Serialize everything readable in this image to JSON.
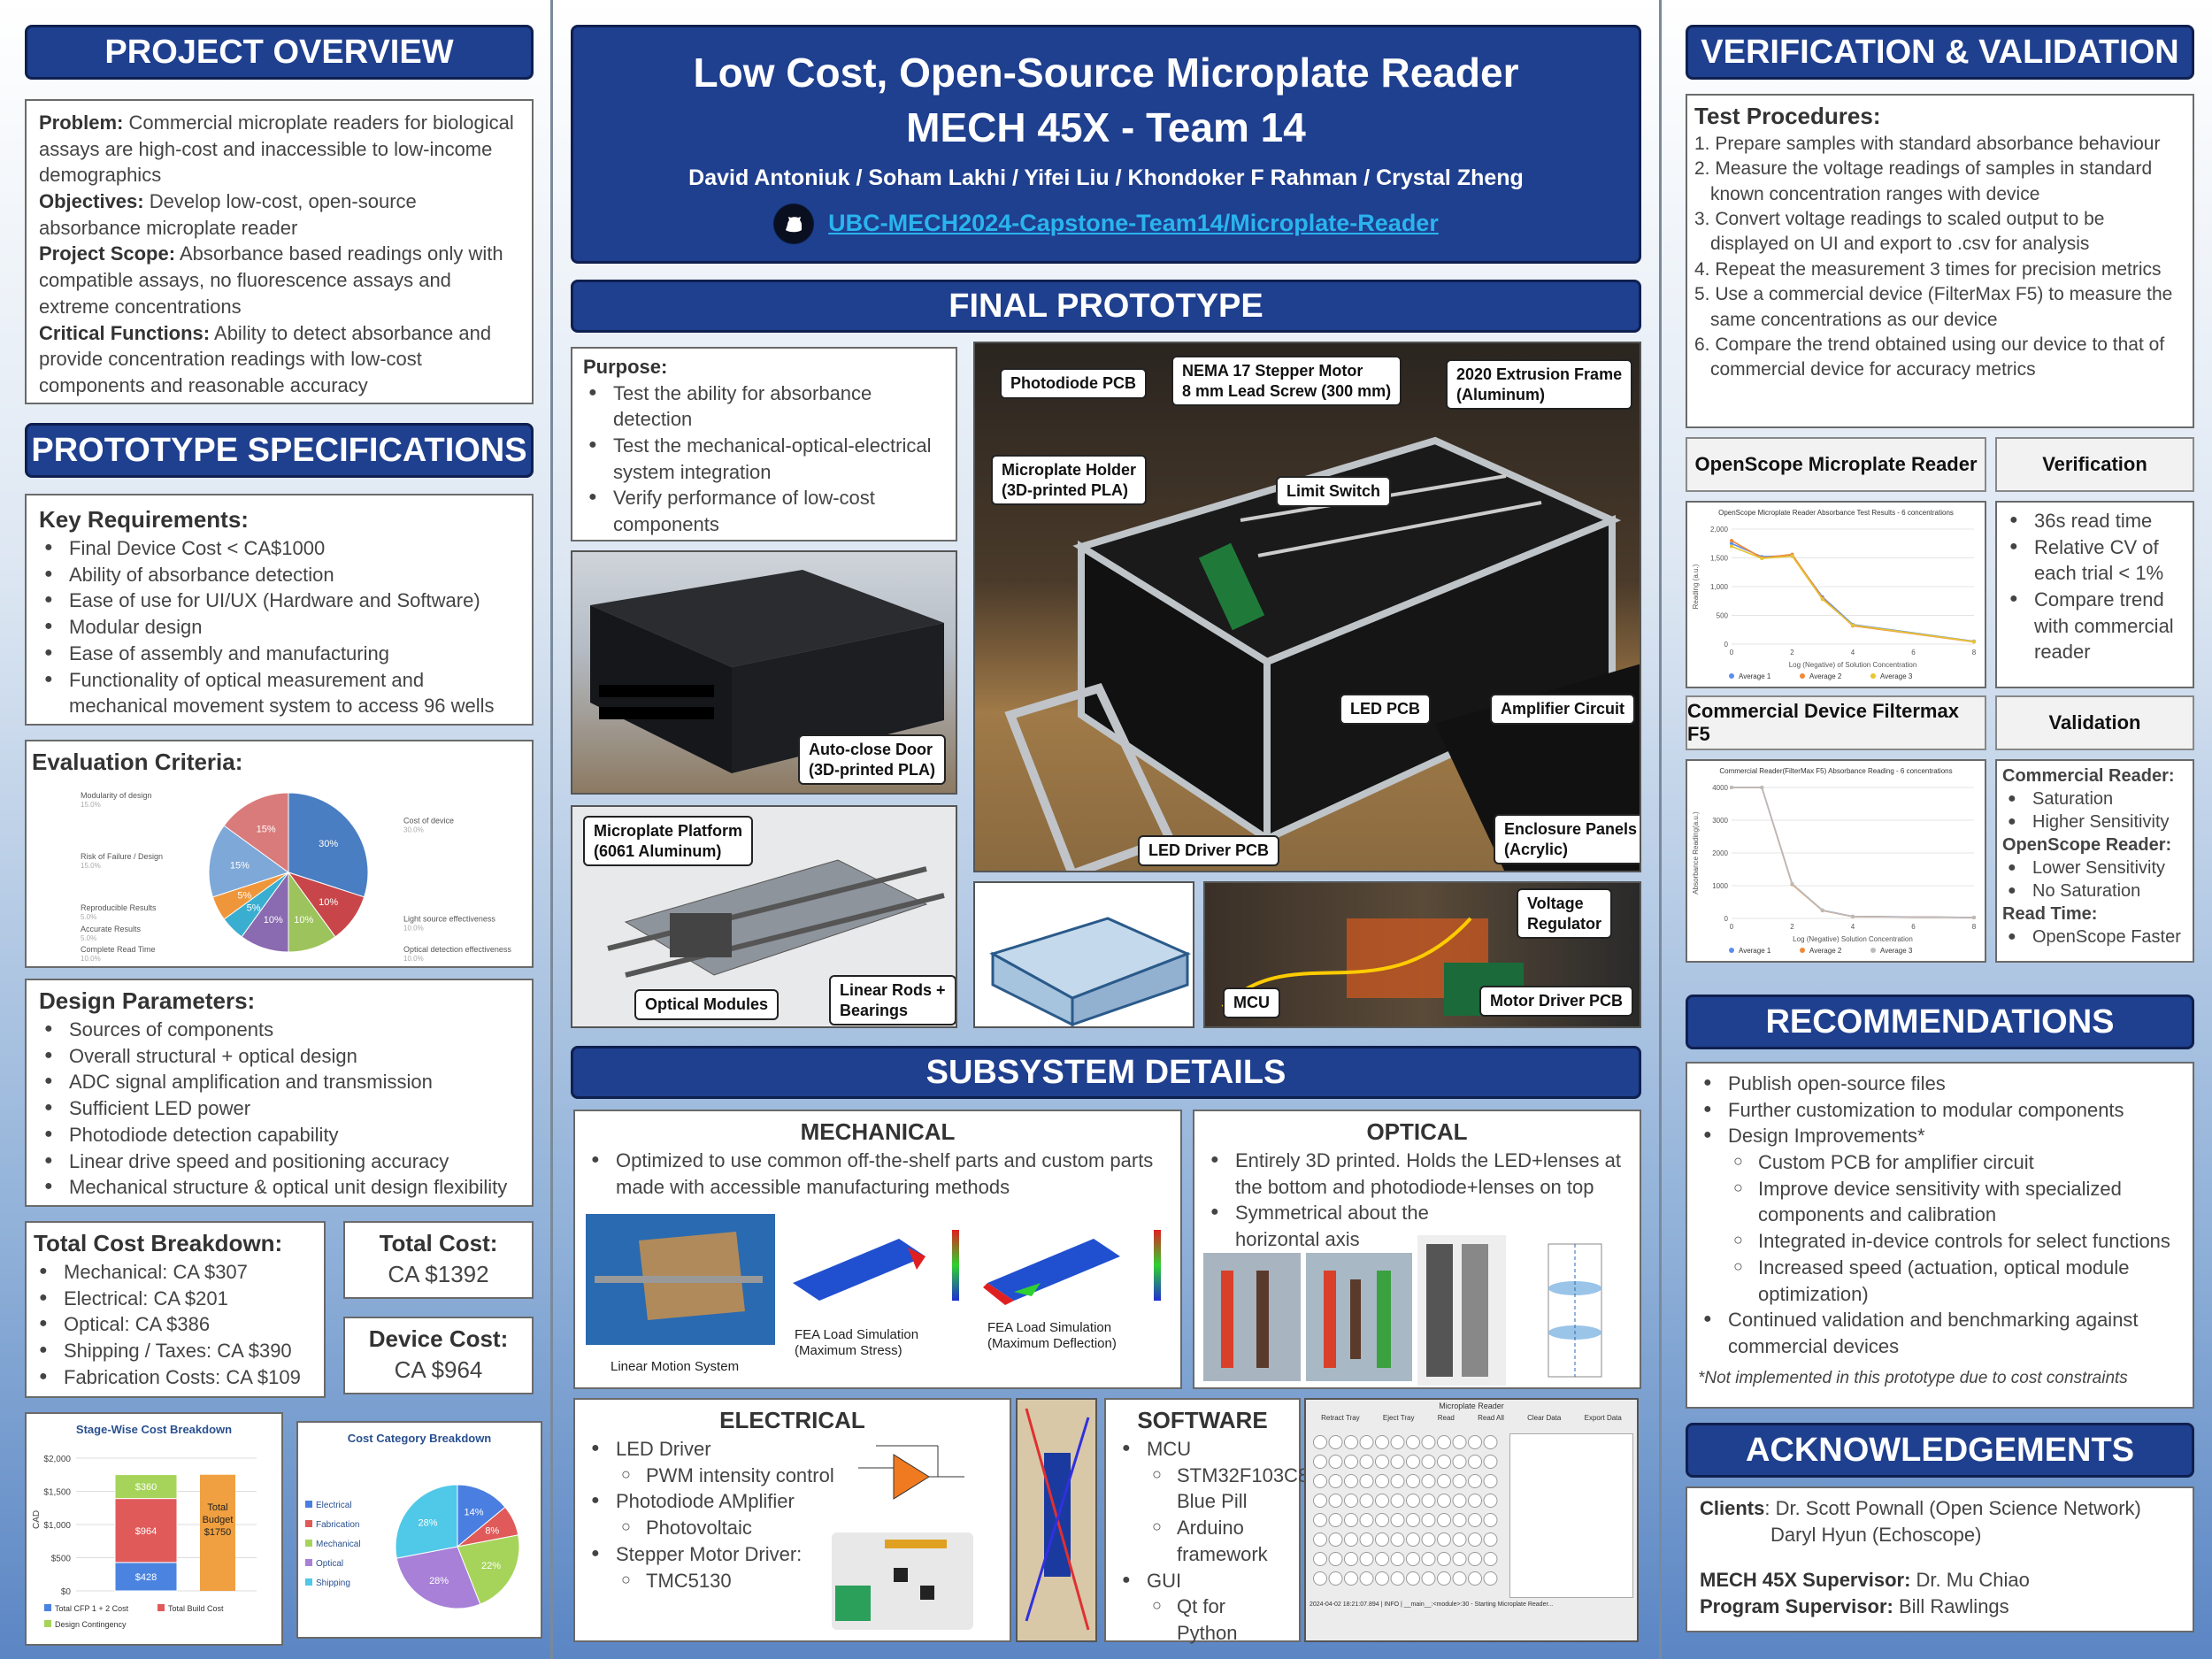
{
  "title": {
    "line1": "Low Cost, Open-Source Microplate Reader",
    "line2": "MECH 45X - Team 14",
    "authors": "David Antoniuk / Soham Lakhi / Yifei Liu / Khondoker F Rahman / Crystal Zheng",
    "repo": "UBC-MECH2024-Capstone-Team14/Microplate-Reader"
  },
  "headers": {
    "overview": "PROJECT OVERVIEW",
    "specs": "PROTOTYPE SPECIFICATIONS",
    "prototype": "FINAL PROTOTYPE",
    "subsystem": "SUBSYSTEM DETAILS",
    "verification": "VERIFICATION & VALIDATION",
    "recommendations": "RECOMMENDATIONS",
    "acknowledgements": "ACKNOWLEDGEMENTS"
  },
  "overview": [
    {
      "label": "Problem:",
      "text": " Commercial microplate readers for biological assays are high-cost and inaccessible to low-income demographics"
    },
    {
      "label": "Objectives:",
      "text": " Develop low-cost, open-source absorbance microplate reader"
    },
    {
      "label": "Project Scope:",
      "text": " Absorbance based readings only with compatible assays, no fluorescence assays and extreme concentrations"
    },
    {
      "label": "Critical Functions:",
      "text": " Ability to detect absorbance and provide concentration readings with low-cost components and reasonable accuracy"
    }
  ],
  "key_requirements": {
    "title": "Key Requirements:",
    "items": [
      "Final Device Cost < CA$1000",
      "Ability of absorbance detection",
      "Ease of use for UI/UX (Hardware and Software)",
      "Modular design",
      "Ease of assembly and manufacturing",
      "Functionality of optical measurement and mechanical movement system to access 96 wells"
    ]
  },
  "evaluation": {
    "title": "Evaluation Criteria:"
  },
  "design_params": {
    "title": "Design Parameters:",
    "items": [
      "Sources of components",
      "Overall structural + optical design",
      "ADC signal amplification and transmission",
      "Sufficient LED power",
      "Photodiode detection capability",
      "Linear drive speed and positioning accuracy",
      "Mechanical structure & optical unit design flexibility"
    ]
  },
  "cost_breakdown": {
    "title": "Total Cost Breakdown:",
    "items": [
      "Mechanical: CA $307",
      "Electrical: CA $201",
      "Optical: CA $386",
      "Shipping / Taxes: CA $390",
      "Fabrication Costs: CA $109"
    ]
  },
  "total_cost": {
    "label": "Total Cost:",
    "value": "CA $1392"
  },
  "device_cost": {
    "label": "Device Cost:",
    "value": "CA $964"
  },
  "purpose": {
    "title": "Purpose:",
    "items": [
      "Test the ability for absorbance detection",
      "Test the mechanical-optical-electrical system integration",
      "Verify performance of low-cost components"
    ]
  },
  "callouts": {
    "photodiode_pcb": "Photodiode PCB",
    "nema": "NEMA 17 Stepper Motor",
    "lead_screw": "8 mm Lead Screw (300 mm)",
    "frame1": "2020 Extrusion Frame",
    "frame2": "(Aluminum)",
    "holder1": "Microplate Holder",
    "holder2": "(3D-printed PLA)",
    "limit": "Limit Switch",
    "led_pcb": "LED PCB",
    "amp": "Amplifier Circuit",
    "door1": "Auto-close Door",
    "door2": "(3D-printed PLA)",
    "enc1": "Enclosure Panels",
    "enc2": "(Acrylic)",
    "platform1": "Microplate Platform",
    "platform2": "(6061 Aluminum)",
    "optical": "Optical Modules",
    "rods1": "Linear Rods +",
    "rods2": "Bearings",
    "led_driver": "LED Driver PCB",
    "volt1": "Voltage",
    "volt2": "Regulator",
    "mcu": "MCU",
    "motor_driver": "Motor Driver PCB"
  },
  "mechanical": {
    "title": "MECHANICAL",
    "text": "Optimized to use common off-the-shelf parts and custom parts made with accessible manufacturing methods",
    "cap1": "Linear Motion System",
    "cap2": "FEA Load Simulation (Maximum Stress)",
    "cap3": "FEA Load Simulation (Maximum Deflection)"
  },
  "optical_sub": {
    "title": "OPTICAL",
    "items": [
      "Entirely 3D printed. Holds the LED+lenses at the bottom and photodiode+lenses on top",
      "Symmetrical about the horizontal axis"
    ]
  },
  "electrical": {
    "title": "ELECTRICAL",
    "i1": "LED Driver",
    "i1a": "PWM intensity control",
    "i2": "Photodiode AMplifier",
    "i2a": "Photovoltaic",
    "i3": "Stepper Motor Driver:",
    "i3a": "TMC5130"
  },
  "software": {
    "title": "SOFTWARE",
    "i1": "MCU",
    "i1a": "STM32F103C8 Blue Pill",
    "i1b": "Arduino framework",
    "i2": "GUI",
    "i2a": "Qt for Python"
  },
  "gui_shot": {
    "title": "Microplate Reader",
    "buttons": [
      "Retract Tray",
      "Eject Tray",
      "Read",
      "Read All",
      "Clear Data",
      "Export Data"
    ],
    "status": "2024-04-02 18:21:07.894 | INFO | __main__:<module>:30 - Starting Microplate Reader..."
  },
  "test_procedures": {
    "title": "Test Procedures:",
    "items": [
      "1. Prepare samples with standard absorbance behaviour",
      "2. Measure the voltage readings of samples in standard known concentration ranges with device",
      "3. Convert voltage readings to scaled output to be displayed on UI and export to .csv for analysis",
      "4. Repeat the measurement 3 times for precision metrics",
      "5. Use a commercial device (FilterMax F5) to measure the same concentrations as our device",
      "6. Compare the trend obtained using our device to that of commercial device for accuracy metrics"
    ]
  },
  "vv": {
    "openscope_hdr": "OpenScope Microplate Reader",
    "verification_hdr": "Verification",
    "commercial_hdr": "Commercial Device Filtermax F5",
    "validation_hdr": "Validation",
    "verification_items": [
      "36s read time",
      "Relative CV of each trial < 1%",
      "Compare trend with commercial reader"
    ],
    "validation": {
      "c_label": "Commercial Reader:",
      "c_items": [
        "Saturation",
        "Higher Sensitivity"
      ],
      "o_label": "OpenScope Reader:",
      "o_items": [
        "Lower Sensitivity",
        "No Saturation"
      ],
      "r_label": "Read Time:",
      "r_items": [
        "OpenScope Faster"
      ]
    }
  },
  "recommendations": {
    "i1": "Publish open-source files",
    "i2": "Further customization to modular components",
    "i3": "Design Improvements*",
    "sub": [
      "Custom PCB for amplifier circuit",
      "Improve device sensitivity with specialized components and calibration",
      "Integrated in-device controls for select functions",
      "Increased speed (actuation, optical module optimization)"
    ],
    "i4": "Continued validation and benchmarking against commercial devices",
    "note": "*Not implemented in this prototype due to cost constraints"
  },
  "ack": {
    "clients_label": "Clients",
    "client1": ": Dr. Scott Pownall (Open Science Network)",
    "client2": "Daryl Hyun (Echoscope)",
    "sup_label": "MECH 45X Supervisor:",
    "sup": " Dr. Mu Chiao",
    "prog_label": "Program Supervisor:",
    "prog": " Bill Rawlings"
  },
  "colors": {
    "header": "#1f3f8f",
    "link": "#1fa0e0"
  },
  "chart_data": [
    {
      "type": "pie",
      "title": "Evaluation Criteria",
      "series": [
        {
          "name": "Cost of device",
          "value": 30
        },
        {
          "name": "Light source effectiveness",
          "value": 10
        },
        {
          "name": "Optical detection effectiveness",
          "value": 10
        },
        {
          "name": "Complete Read Time",
          "value": 10
        },
        {
          "name": "Accurate Results",
          "value": 5
        },
        {
          "name": "Reproducible Results",
          "value": 5
        },
        {
          "name": "Risk of Failure / Design",
          "value": 15
        },
        {
          "name": "Modularity of design",
          "value": 15
        }
      ],
      "colors": [
        "#4a7ec2",
        "#c8464a",
        "#9dc35c",
        "#8a6ab0",
        "#3aaed0",
        "#f0963a",
        "#7ea8d8",
        "#d97b7b"
      ],
      "labels": [
        "30%",
        "10%",
        "10%",
        "10%",
        "5%",
        "5%",
        "15%",
        "15%"
      ]
    },
    {
      "type": "bar",
      "title": "Stage-Wise Cost Breakdown",
      "ylabel": "CAD",
      "ylim": [
        0,
        2000
      ],
      "yticks": [
        "$0",
        "$500",
        "$1,000",
        "$1,500",
        "$2,000"
      ],
      "stack": [
        {
          "name": "Total CFP 1 + 2 Cost",
          "value": 428,
          "label": "$428"
        },
        {
          "name": "Total Build Cost",
          "value": 964,
          "label": "$964"
        },
        {
          "name": "Design Contingency",
          "value": 360,
          "label": "$360"
        }
      ],
      "annotation": [
        "Total",
        "Budget",
        "$1750"
      ]
    },
    {
      "type": "pie",
      "title": "Cost Category Breakdown",
      "series": [
        {
          "name": "Electrical",
          "value": 14
        },
        {
          "name": "Fabrication",
          "value": 8
        },
        {
          "name": "Mechanical",
          "value": 22
        },
        {
          "name": "Optical",
          "value": 28
        },
        {
          "name": "Shipping",
          "value": 28
        }
      ],
      "labels": [
        "14%",
        "8%",
        "22%",
        "28%",
        "28%"
      ],
      "colors": [
        "#4a7ee0",
        "#e05a5a",
        "#a6d45a",
        "#a880d8",
        "#50c8e8"
      ]
    },
    {
      "type": "line",
      "title": "OpenScope Microplate Reader Absorbance Test Results - 6 concentrations",
      "xlabel": "Log (Negative) of Solution Concentration",
      "ylabel": "Reading (a.u.)",
      "ylim": [
        0,
        2000
      ],
      "yticks": [
        "0",
        "500",
        "1,000",
        "1,500",
        "2,000"
      ],
      "x": [
        0,
        1,
        2,
        3,
        4,
        5,
        6,
        7,
        8
      ],
      "xticks": [
        "0",
        "2",
        "4",
        "6",
        "8"
      ],
      "series": [
        {
          "name": "Average 1",
          "x": [
            0,
            1,
            2,
            3,
            4,
            8
          ],
          "values": [
            1750,
            1520,
            1540,
            820,
            340,
            50
          ],
          "color": "#5b8def"
        },
        {
          "name": "Average 2",
          "x": [
            0,
            1,
            2,
            3,
            4,
            8
          ],
          "values": [
            1800,
            1500,
            1560,
            800,
            320,
            40
          ],
          "color": "#ef8a3b"
        },
        {
          "name": "Average 3",
          "x": [
            0,
            1,
            2,
            3,
            4,
            8
          ],
          "values": [
            1700,
            1490,
            1530,
            780,
            330,
            45
          ],
          "color": "#e8c531"
        }
      ]
    },
    {
      "type": "line",
      "title": "Commercial Reader(FilterMax F5) Absorbance Reading - 6 concentrations",
      "xlabel": "Log (Negative) Solution Concentration",
      "ylabel": "Absorbance Reading(a.u.)",
      "ylim": [
        0,
        4000
      ],
      "yticks": [
        "0",
        "1000",
        "2000",
        "3000",
        "4000"
      ],
      "xticks": [
        "0",
        "2",
        "4",
        "6",
        "8"
      ],
      "series": [
        {
          "name": "Average 1",
          "x": [
            0,
            1,
            2,
            3,
            4,
            8
          ],
          "values": [
            4000,
            4000,
            1050,
            250,
            60,
            30
          ],
          "color": "#5b8def"
        },
        {
          "name": "Average 2",
          "x": [
            0,
            1,
            2,
            3,
            4,
            8
          ],
          "values": [
            4000,
            4000,
            1040,
            240,
            55,
            28
          ],
          "color": "#ef8a3b"
        },
        {
          "name": "Average 3",
          "x": [
            0,
            1,
            2,
            3,
            4,
            8
          ],
          "values": [
            4000,
            4000,
            1060,
            245,
            58,
            29
          ],
          "color": "#bbbbbb"
        }
      ]
    }
  ]
}
